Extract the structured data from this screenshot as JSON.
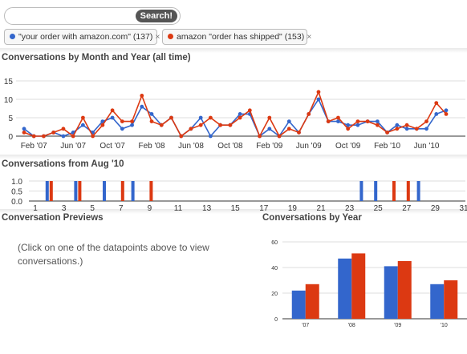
{
  "search": {
    "value": "",
    "placeholder": "",
    "button_label": "Search!"
  },
  "chips": [
    {
      "label": "\"your order with amazon.com\" (137)",
      "close": "×",
      "color": "#3366cc"
    },
    {
      "label": "amazon \"order has shipped\" (153)",
      "close": "×",
      "color": "#dc3912"
    }
  ],
  "sections": {
    "monthly_title": "Conversations by Month and Year (all time)",
    "daily_title": "Conversations from Aug '10",
    "preview_title": "Conversation Previews",
    "preview_hint": "(Click on one of the datapoints above to view conversations.)",
    "yearly_title": "Conversations by Year"
  },
  "chart_data": [
    {
      "type": "line",
      "title": "Conversations by Month and Year (all time)",
      "xlabel": "",
      "ylabel": "",
      "ylim": [
        0,
        15
      ],
      "yticks": [
        0,
        5,
        10,
        15
      ],
      "x_tick_labels": [
        "Feb '07",
        "Jun '07",
        "Oct '07",
        "Feb '08",
        "Jun '08",
        "Oct '08",
        "Feb '09",
        "Jun '09",
        "Oct '09",
        "Feb '10",
        "Jun '10"
      ],
      "x_tick_indices": [
        1,
        5,
        9,
        13,
        17,
        21,
        25,
        29,
        33,
        37,
        41
      ],
      "grid": true,
      "series": [
        {
          "color": "#3366cc",
          "values": [
            2,
            0,
            0,
            1,
            0,
            1,
            3,
            1,
            4,
            5,
            2,
            3,
            8,
            6,
            3,
            5,
            0,
            2,
            5,
            0,
            3,
            3,
            6,
            6,
            0,
            2,
            0,
            4,
            1,
            6,
            10,
            4,
            4,
            3,
            3,
            4,
            4,
            1,
            3,
            2,
            2,
            2,
            6,
            7
          ]
        },
        {
          "color": "#dc3912",
          "values": [
            1,
            0,
            0,
            1,
            2,
            0,
            5,
            0,
            3,
            7,
            4,
            4,
            11,
            4,
            3,
            5,
            0,
            2,
            3,
            5,
            3,
            3,
            5,
            7,
            0,
            5,
            0,
            2,
            1,
            6,
            12,
            4,
            5,
            2,
            4,
            4,
            3,
            1,
            2,
            3,
            2,
            4,
            9,
            6
          ]
        }
      ]
    },
    {
      "type": "bar",
      "title": "Conversations from Aug '10",
      "ylim": [
        0,
        1
      ],
      "yticks": [
        "0.0",
        "0.5",
        "1.0"
      ],
      "x_ticks": [
        1,
        3,
        5,
        7,
        9,
        11,
        13,
        15,
        17,
        19,
        21,
        23,
        25,
        27,
        29,
        31
      ],
      "grid": true,
      "series": [
        {
          "color": "#3366cc",
          "days": [
            2,
            4,
            6,
            8,
            24,
            25,
            28
          ]
        },
        {
          "color": "#dc3912",
          "days": [
            2,
            4,
            7,
            9,
            26,
            27
          ]
        }
      ]
    },
    {
      "type": "bar",
      "title": "Conversations by Year",
      "categories": [
        "'07",
        "'08",
        "'09",
        "'10"
      ],
      "ylim": [
        0,
        60
      ],
      "yticks": [
        0,
        20,
        40,
        60
      ],
      "grid": true,
      "series": [
        {
          "color": "#3366cc",
          "values": [
            22,
            47,
            41,
            27
          ]
        },
        {
          "color": "#dc3912",
          "values": [
            27,
            51,
            45,
            30
          ]
        }
      ]
    }
  ]
}
